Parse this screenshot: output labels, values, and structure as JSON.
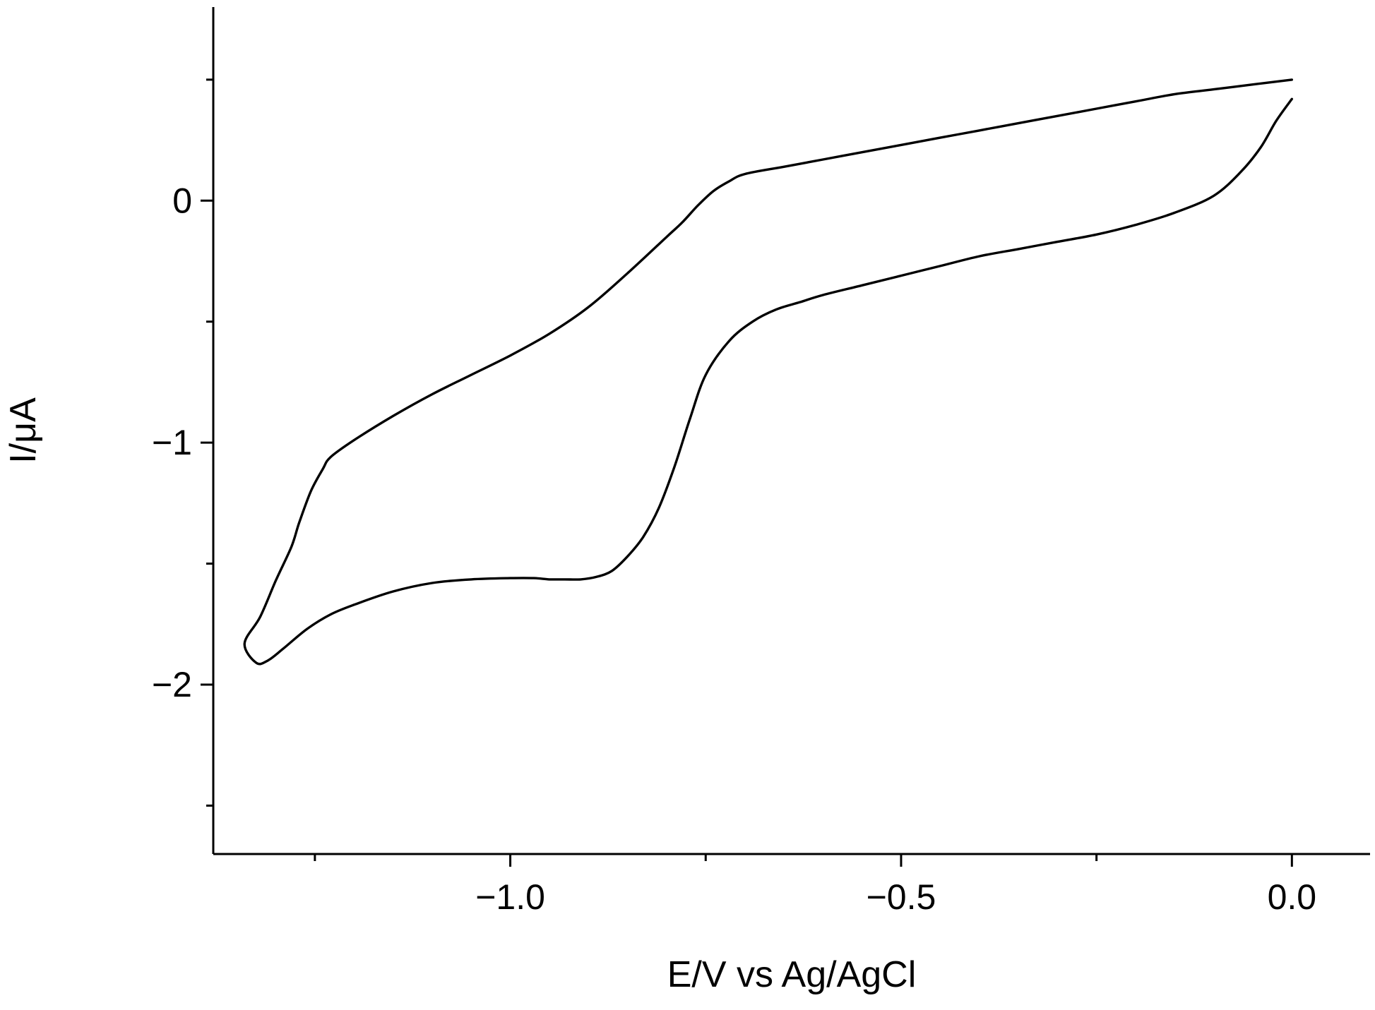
{
  "chart_data": {
    "type": "line",
    "title": "",
    "xlabel": "E/V vs Ag/AgCl",
    "ylabel": "I/μA",
    "xlim": [
      -1.38,
      0.1
    ],
    "ylim": [
      -2.7,
      0.8
    ],
    "grid": false,
    "x_ticks": [
      {
        "value": -1.0,
        "label": "−1.0"
      },
      {
        "value": -0.5,
        "label": "−0.5"
      },
      {
        "value": 0.0,
        "label": "0.0"
      }
    ],
    "x_minor_ticks": [
      -1.25,
      -0.75,
      -0.25
    ],
    "y_ticks": [
      {
        "value": 0,
        "label": "0"
      },
      {
        "value": -1,
        "label": "−1"
      },
      {
        "value": -2,
        "label": "−2"
      }
    ],
    "y_minor_ticks": [
      0.5,
      -0.5,
      -1.5,
      -2.5
    ],
    "series": [
      {
        "name": "",
        "x": [
          0.0,
          -0.02,
          -0.04,
          -0.065,
          -0.1,
          -0.15,
          -0.2,
          -0.25,
          -0.3,
          -0.35,
          -0.4,
          -0.45,
          -0.5,
          -0.55,
          -0.6,
          -0.63,
          -0.66,
          -0.69,
          -0.72,
          -0.75,
          -0.77,
          -0.79,
          -0.81,
          -0.83,
          -0.85,
          -0.87,
          -0.89,
          -0.91,
          -0.93,
          -0.95,
          -0.97,
          -1.0,
          -1.05,
          -1.1,
          -1.15,
          -1.2,
          -1.23,
          -1.26,
          -1.29,
          -1.31,
          -1.325,
          -1.34,
          -1.32,
          -1.3,
          -1.28,
          -1.27,
          -1.255,
          -1.24,
          -1.23,
          -1.2,
          -1.15,
          -1.1,
          -1.05,
          -1.0,
          -0.95,
          -0.9,
          -0.85,
          -0.8,
          -0.78,
          -0.76,
          -0.74,
          -0.72,
          -0.7,
          -0.65,
          -0.6,
          -0.55,
          -0.5,
          -0.45,
          -0.4,
          -0.35,
          -0.3,
          -0.25,
          -0.2,
          -0.15,
          -0.1,
          -0.05,
          0.0
        ],
        "y": [
          0.42,
          0.33,
          0.22,
          0.12,
          0.02,
          -0.05,
          -0.1,
          -0.14,
          -0.17,
          -0.2,
          -0.23,
          -0.27,
          -0.31,
          -0.35,
          -0.39,
          -0.42,
          -0.45,
          -0.5,
          -0.58,
          -0.72,
          -0.9,
          -1.1,
          -1.27,
          -1.39,
          -1.47,
          -1.53,
          -1.555,
          -1.565,
          -1.565,
          -1.565,
          -1.56,
          -1.56,
          -1.565,
          -1.58,
          -1.615,
          -1.67,
          -1.71,
          -1.77,
          -1.85,
          -1.9,
          -1.91,
          -1.83,
          -1.72,
          -1.57,
          -1.43,
          -1.33,
          -1.2,
          -1.11,
          -1.06,
          -0.99,
          -0.89,
          -0.8,
          -0.72,
          -0.64,
          -0.55,
          -0.44,
          -0.3,
          -0.15,
          -0.09,
          -0.02,
          0.04,
          0.08,
          0.11,
          0.14,
          0.17,
          0.2,
          0.23,
          0.26,
          0.29,
          0.32,
          0.35,
          0.38,
          0.41,
          0.44,
          0.46,
          0.48,
          0.5
        ]
      }
    ]
  }
}
